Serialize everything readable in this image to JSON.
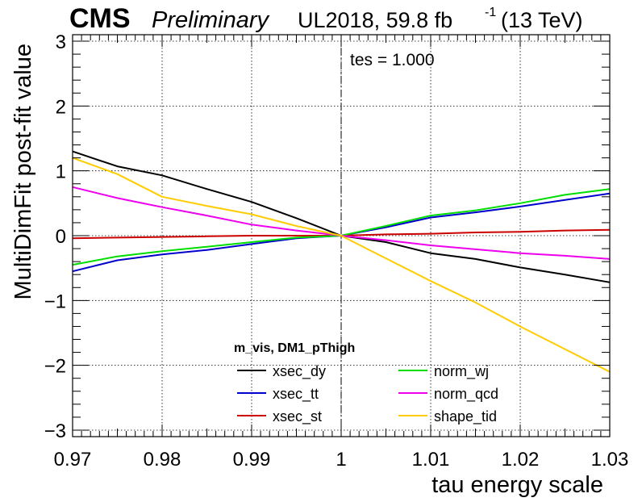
{
  "header": {
    "experiment": "CMS",
    "status": "Preliminary",
    "dataset": "UL2018, 59.8 fb",
    "lumi_superscript": "-1",
    "energy": "(13 TeV)"
  },
  "annotation": "tes = 1.000",
  "chart_data": {
    "type": "line",
    "xlabel": "tau energy scale",
    "ylabel": "MultiDimFit post-fit value",
    "xlim": [
      0.97,
      1.03
    ],
    "ylim": [
      -3.1,
      3.1
    ],
    "xticks": [
      0.97,
      0.98,
      0.99,
      1,
      1.01,
      1.02,
      1.03
    ],
    "xtick_labels": [
      "0.97",
      "0.98",
      "0.99",
      "1",
      "1.01",
      "1.02",
      "1.03"
    ],
    "yticks": [
      -3,
      -2,
      -1,
      0,
      1,
      2,
      3
    ],
    "ytick_labels": [
      "−3",
      "−2",
      "−1",
      "0",
      "1",
      "2",
      "3"
    ],
    "grid": true,
    "reference_line_x": 1.0,
    "legend_title": "m_vis, DM1_pThigh",
    "legend_position": "bottom-center",
    "x": [
      0.97,
      0.975,
      0.98,
      0.985,
      0.99,
      0.995,
      1.0,
      1.005,
      1.01,
      1.015,
      1.02,
      1.025,
      1.03
    ],
    "series": [
      {
        "name": "xsec_dy",
        "color": "#000000",
        "values": [
          1.3,
          1.07,
          0.93,
          0.72,
          0.52,
          0.27,
          0.0,
          -0.1,
          -0.27,
          -0.36,
          -0.49,
          -0.6,
          -0.72
        ]
      },
      {
        "name": "xsec_tt",
        "color": "#0000cc",
        "values": [
          -0.55,
          -0.38,
          -0.29,
          -0.22,
          -0.13,
          -0.04,
          0.0,
          0.13,
          0.28,
          0.36,
          0.45,
          0.55,
          0.65
        ]
      },
      {
        "name": "xsec_st",
        "color": "#cc0000",
        "values": [
          -0.04,
          -0.03,
          -0.02,
          -0.01,
          0.0,
          0.0,
          0.0,
          0.02,
          0.03,
          0.05,
          0.06,
          0.08,
          0.09
        ]
      },
      {
        "name": "norm_wj",
        "color": "#00dd00",
        "values": [
          -0.45,
          -0.32,
          -0.24,
          -0.17,
          -0.1,
          -0.03,
          0.0,
          0.15,
          0.31,
          0.39,
          0.5,
          0.63,
          0.72
        ]
      },
      {
        "name": "norm_qcd",
        "color": "#ee00ee",
        "values": [
          0.75,
          0.58,
          0.44,
          0.31,
          0.17,
          0.08,
          0.0,
          -0.07,
          -0.15,
          -0.21,
          -0.27,
          -0.31,
          -0.36
        ]
      },
      {
        "name": "shape_tid",
        "color": "#ffcc00",
        "values": [
          1.2,
          0.95,
          0.6,
          0.46,
          0.33,
          0.15,
          0.0,
          -0.35,
          -0.7,
          -1.03,
          -1.4,
          -1.75,
          -2.1
        ]
      }
    ]
  }
}
